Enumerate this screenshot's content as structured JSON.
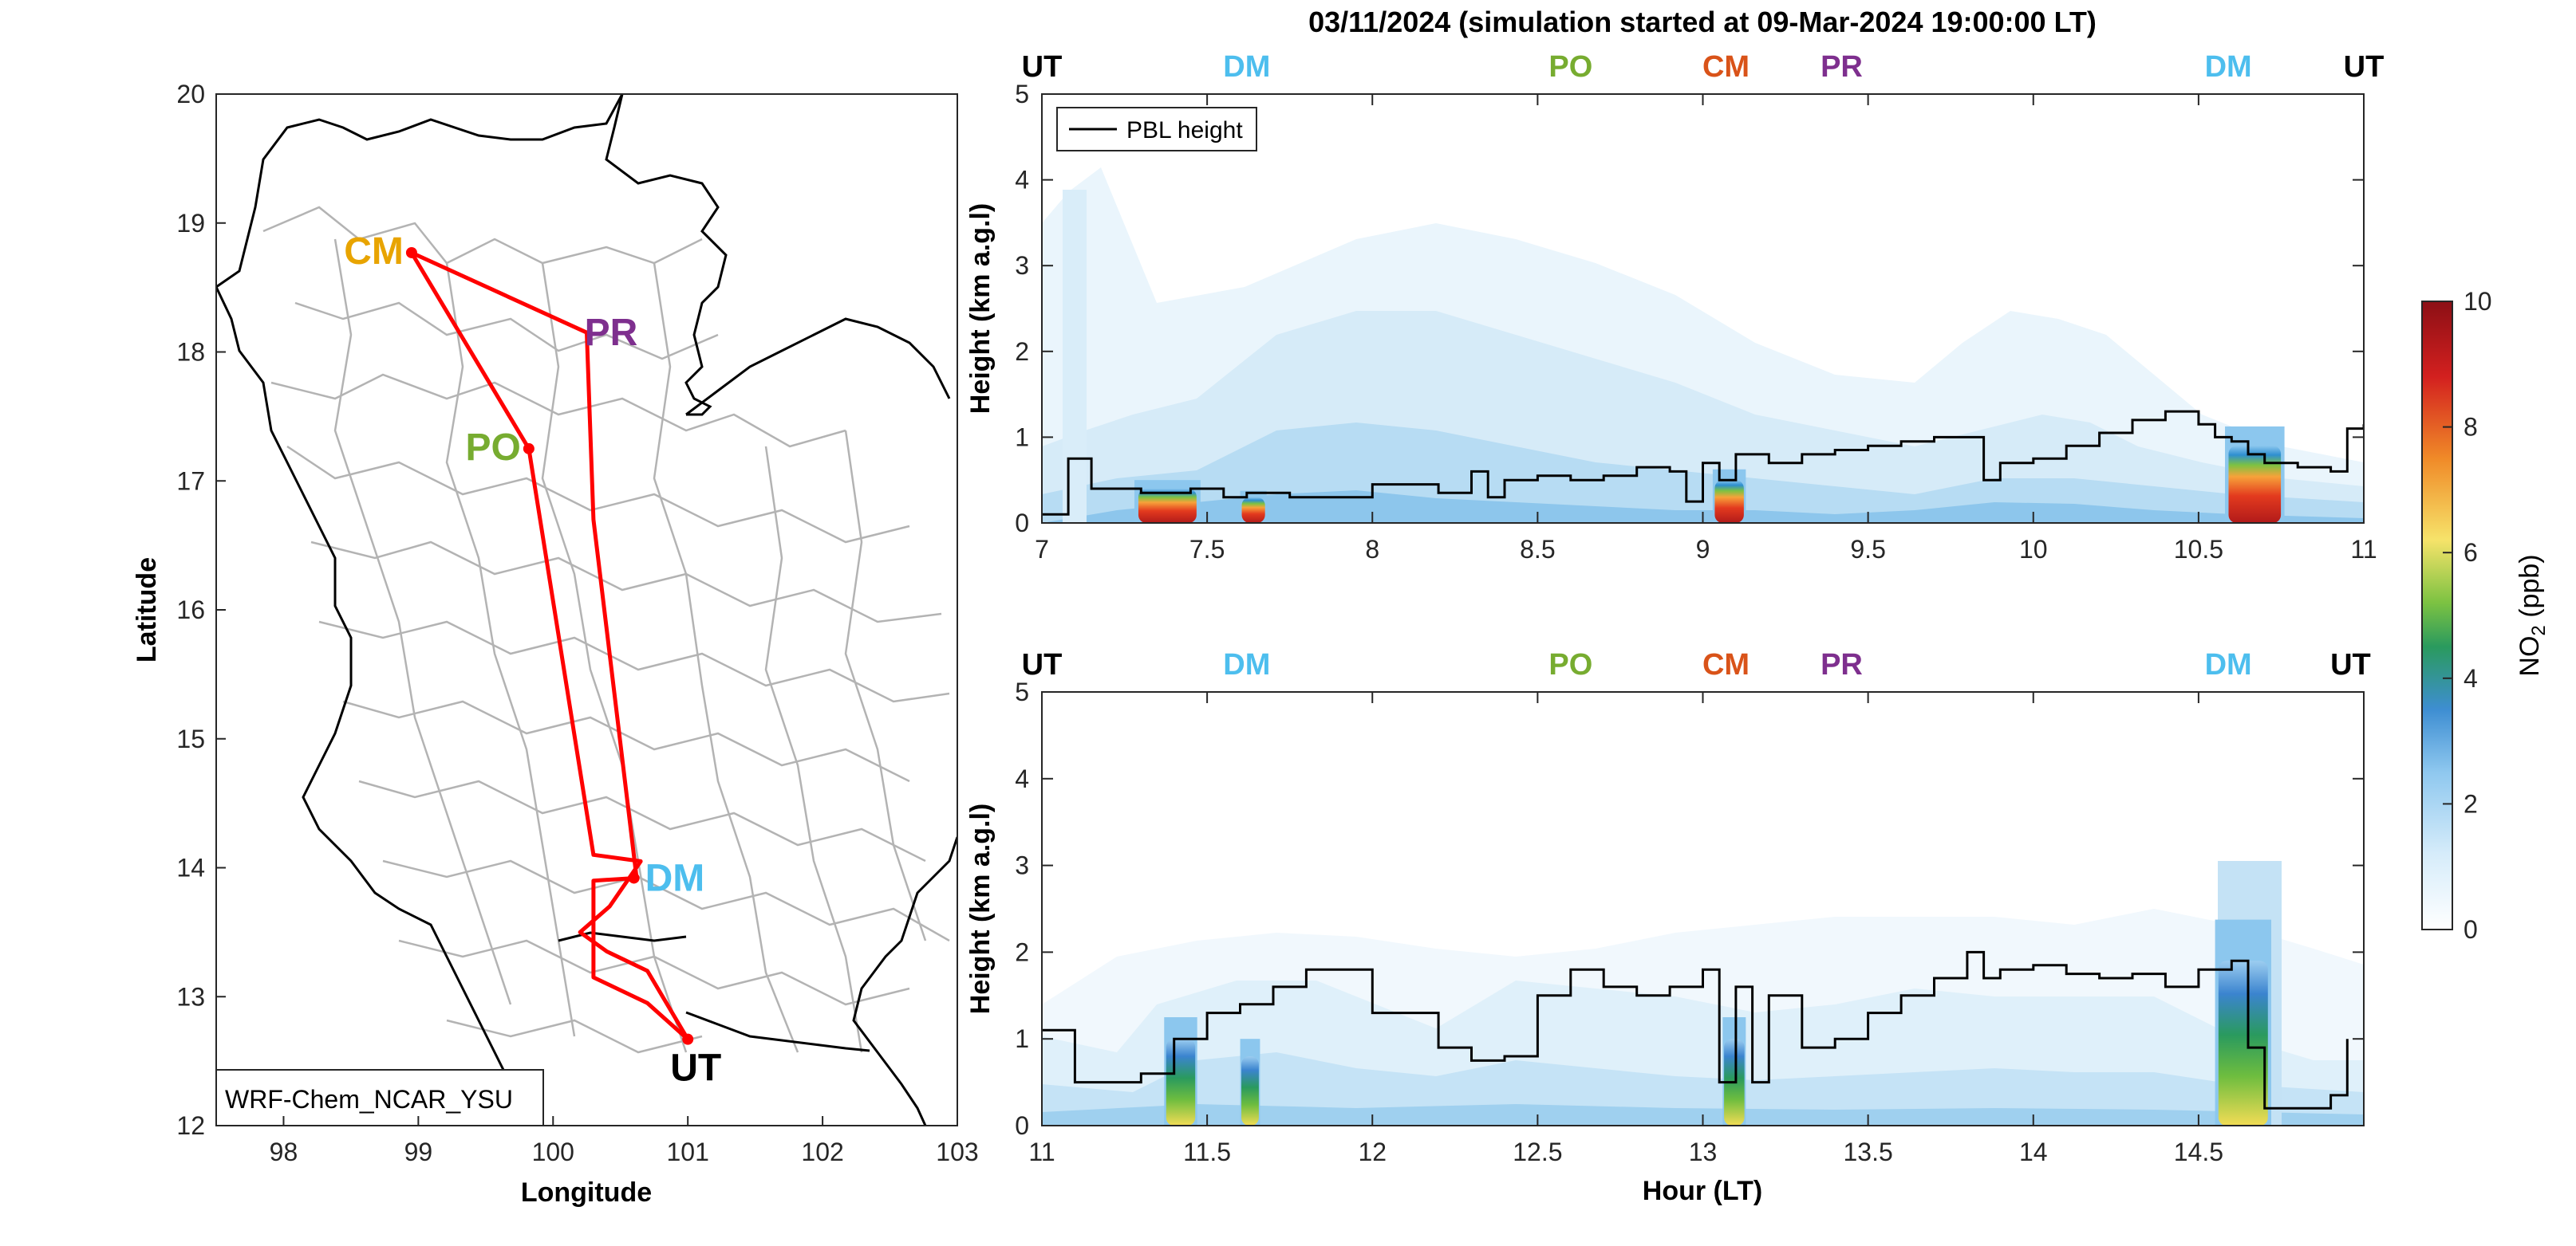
{
  "chart_data": [
    {
      "type": "map",
      "xlabel": "Longitude",
      "ylabel": "Latitude",
      "xlim": [
        97.5,
        103
      ],
      "ylim": [
        12,
        20
      ],
      "xticks": [
        "98",
        "99",
        "100",
        "101",
        "102",
        "103"
      ],
      "yticks": [
        "12",
        "13",
        "14",
        "15",
        "16",
        "17",
        "18",
        "19",
        "20"
      ],
      "model_label": "WRF-Chem_NCAR_YSU",
      "stations": [
        {
          "name": "CM",
          "lon": 98.95,
          "lat": 18.77,
          "color": "#E8A400",
          "label_side": "left"
        },
        {
          "name": "PR",
          "lon": 100.15,
          "lat": 18.15,
          "color": "#7E2F8E",
          "label_side": "right",
          "marker": false
        },
        {
          "name": "PO",
          "lon": 99.82,
          "lat": 17.25,
          "color": "#77AC30",
          "label_side": "left"
        },
        {
          "name": "DM",
          "lon": 100.6,
          "lat": 13.92,
          "color": "#4DBEEE",
          "label_side": "right"
        },
        {
          "name": "UT",
          "lon": 101.0,
          "lat": 12.67,
          "color": "#000000",
          "label_side": "below"
        }
      ],
      "flight_track": [
        [
          101.0,
          12.67
        ],
        [
          100.7,
          12.95
        ],
        [
          100.3,
          13.15
        ],
        [
          100.3,
          13.9
        ],
        [
          100.62,
          13.92
        ],
        [
          100.3,
          16.7
        ],
        [
          100.25,
          18.15
        ],
        [
          98.95,
          18.77
        ],
        [
          99.82,
          17.25
        ],
        [
          100.3,
          14.1
        ],
        [
          100.65,
          14.05
        ],
        [
          100.42,
          13.7
        ],
        [
          100.2,
          13.5
        ],
        [
          100.4,
          13.35
        ],
        [
          100.7,
          13.2
        ],
        [
          101.0,
          12.67
        ]
      ],
      "track_color": "#FF0000"
    },
    {
      "type": "heatmap",
      "title": "03/11/2024 (simulation started at 09-Mar-2024 19:00:00 LT)",
      "xlim": [
        7,
        11
      ],
      "ylim": [
        0,
        5
      ],
      "xticks": [
        "7",
        "7.5",
        "8",
        "8.5",
        "9",
        "9.5",
        "10",
        "10.5",
        "11"
      ],
      "yticks": [
        "0",
        "1",
        "2",
        "3",
        "4",
        "5"
      ],
      "ylabel": "Height (km a.g.l)",
      "legend": {
        "entry": "PBL height",
        "position": "top-left"
      },
      "site_labels": [
        {
          "name": "UT",
          "x": 7.0,
          "color": "#000000"
        },
        {
          "name": "DM",
          "x": 7.62,
          "color": "#4DBEEE"
        },
        {
          "name": "PO",
          "x": 8.6,
          "color": "#77AC30"
        },
        {
          "name": "CM",
          "x": 9.07,
          "color": "#D95319"
        },
        {
          "name": "PR",
          "x": 9.42,
          "color": "#7E2F8E"
        },
        {
          "name": "DM",
          "x": 10.59,
          "color": "#4DBEEE"
        },
        {
          "name": "UT",
          "x": 11.0,
          "color": "#000000"
        }
      ],
      "pbl_height": {
        "x": [
          7.0,
          7.05,
          7.08,
          7.15,
          7.3,
          7.45,
          7.55,
          7.62,
          7.75,
          7.9,
          8.0,
          8.1,
          8.2,
          8.3,
          8.35,
          8.4,
          8.5,
          8.6,
          8.7,
          8.8,
          8.9,
          8.95,
          9.0,
          9.05,
          9.1,
          9.2,
          9.3,
          9.4,
          9.5,
          9.6,
          9.7,
          9.8,
          9.85,
          9.9,
          10.0,
          10.1,
          10.2,
          10.3,
          10.4,
          10.5,
          10.55,
          10.6,
          10.65,
          10.7,
          10.8,
          10.9,
          10.95,
          11.0
        ],
        "y": [
          0.1,
          0.1,
          0.75,
          0.4,
          0.35,
          0.4,
          0.3,
          0.35,
          0.3,
          0.3,
          0.45,
          0.45,
          0.35,
          0.6,
          0.3,
          0.5,
          0.55,
          0.5,
          0.55,
          0.65,
          0.6,
          0.25,
          0.7,
          0.5,
          0.8,
          0.7,
          0.8,
          0.85,
          0.9,
          0.95,
          1.0,
          1.0,
          0.5,
          0.7,
          0.75,
          0.9,
          1.05,
          1.2,
          1.3,
          1.15,
          1.0,
          0.95,
          0.8,
          0.7,
          0.65,
          0.6,
          1.1,
          1.15
        ]
      },
      "no2_hotspots": [
        {
          "x0": 7.28,
          "x1": 7.48,
          "z_top": 0.4,
          "peak": 9.5
        },
        {
          "x0": 7.6,
          "x1": 7.68,
          "z_top": 0.3,
          "peak": 8
        },
        {
          "x0": 9.03,
          "x1": 9.13,
          "z_top": 0.5,
          "peak": 9.5
        },
        {
          "x0": 10.58,
          "x1": 10.76,
          "z_top": 0.9,
          "peak": 9
        }
      ]
    },
    {
      "type": "heatmap",
      "xlim": [
        11,
        15
      ],
      "ylim": [
        0,
        5
      ],
      "xticks": [
        "11",
        "11.5",
        "12",
        "12.5",
        "13",
        "13.5",
        "14",
        "14.5"
      ],
      "yticks": [
        "0",
        "1",
        "2",
        "3",
        "4",
        "5"
      ],
      "xlabel": "Hour (LT)",
      "ylabel": "Height (km a.g.l)",
      "site_labels": [
        {
          "name": "UT",
          "x": 11.0,
          "color": "#000000"
        },
        {
          "name": "DM",
          "x": 11.62,
          "color": "#4DBEEE"
        },
        {
          "name": "PO",
          "x": 12.6,
          "color": "#77AC30"
        },
        {
          "name": "CM",
          "x": 13.07,
          "color": "#D95319"
        },
        {
          "name": "PR",
          "x": 13.42,
          "color": "#7E2F8E"
        },
        {
          "name": "DM",
          "x": 14.59,
          "color": "#4DBEEE"
        },
        {
          "name": "UT",
          "x": 14.96,
          "color": "#000000"
        }
      ],
      "pbl_height": {
        "x": [
          11.0,
          11.05,
          11.1,
          11.2,
          11.3,
          11.4,
          11.5,
          11.6,
          11.7,
          11.8,
          11.9,
          12.0,
          12.1,
          12.2,
          12.3,
          12.4,
          12.5,
          12.6,
          12.7,
          12.8,
          12.9,
          13.0,
          13.05,
          13.1,
          13.15,
          13.2,
          13.3,
          13.4,
          13.5,
          13.6,
          13.7,
          13.8,
          13.85,
          13.9,
          14.0,
          14.1,
          14.2,
          14.3,
          14.4,
          14.5,
          14.6,
          14.65,
          14.7,
          14.8,
          14.9,
          14.95
        ],
        "y": [
          1.1,
          1.1,
          0.5,
          0.5,
          0.6,
          1.0,
          1.3,
          1.4,
          1.6,
          1.8,
          1.8,
          1.3,
          1.3,
          0.9,
          0.75,
          0.8,
          1.5,
          1.8,
          1.6,
          1.5,
          1.6,
          1.8,
          0.5,
          1.6,
          0.5,
          1.5,
          0.9,
          1.0,
          1.3,
          1.5,
          1.7,
          2.0,
          1.7,
          1.8,
          1.85,
          1.75,
          1.7,
          1.75,
          1.6,
          1.8,
          1.9,
          0.9,
          0.2,
          0.2,
          0.35,
          1.0
        ]
      },
      "no2_hotspots": [
        {
          "x0": 11.37,
          "x1": 11.47,
          "z_top": 1.0,
          "peak": 6
        },
        {
          "x0": 11.6,
          "x1": 11.66,
          "z_top": 0.8,
          "peak": 5
        },
        {
          "x0": 13.06,
          "x1": 13.13,
          "z_top": 1.0,
          "peak": 4
        },
        {
          "x0": 14.55,
          "x1": 14.72,
          "z_top": 1.9,
          "peak": 6.5
        }
      ]
    },
    {
      "type": "colorbar",
      "label": "NO",
      "label_sub": "2",
      "label_unit": " (ppb)",
      "range": [
        0,
        10
      ],
      "ticks": [
        "0",
        "2",
        "4",
        "6",
        "8",
        "10"
      ]
    }
  ]
}
